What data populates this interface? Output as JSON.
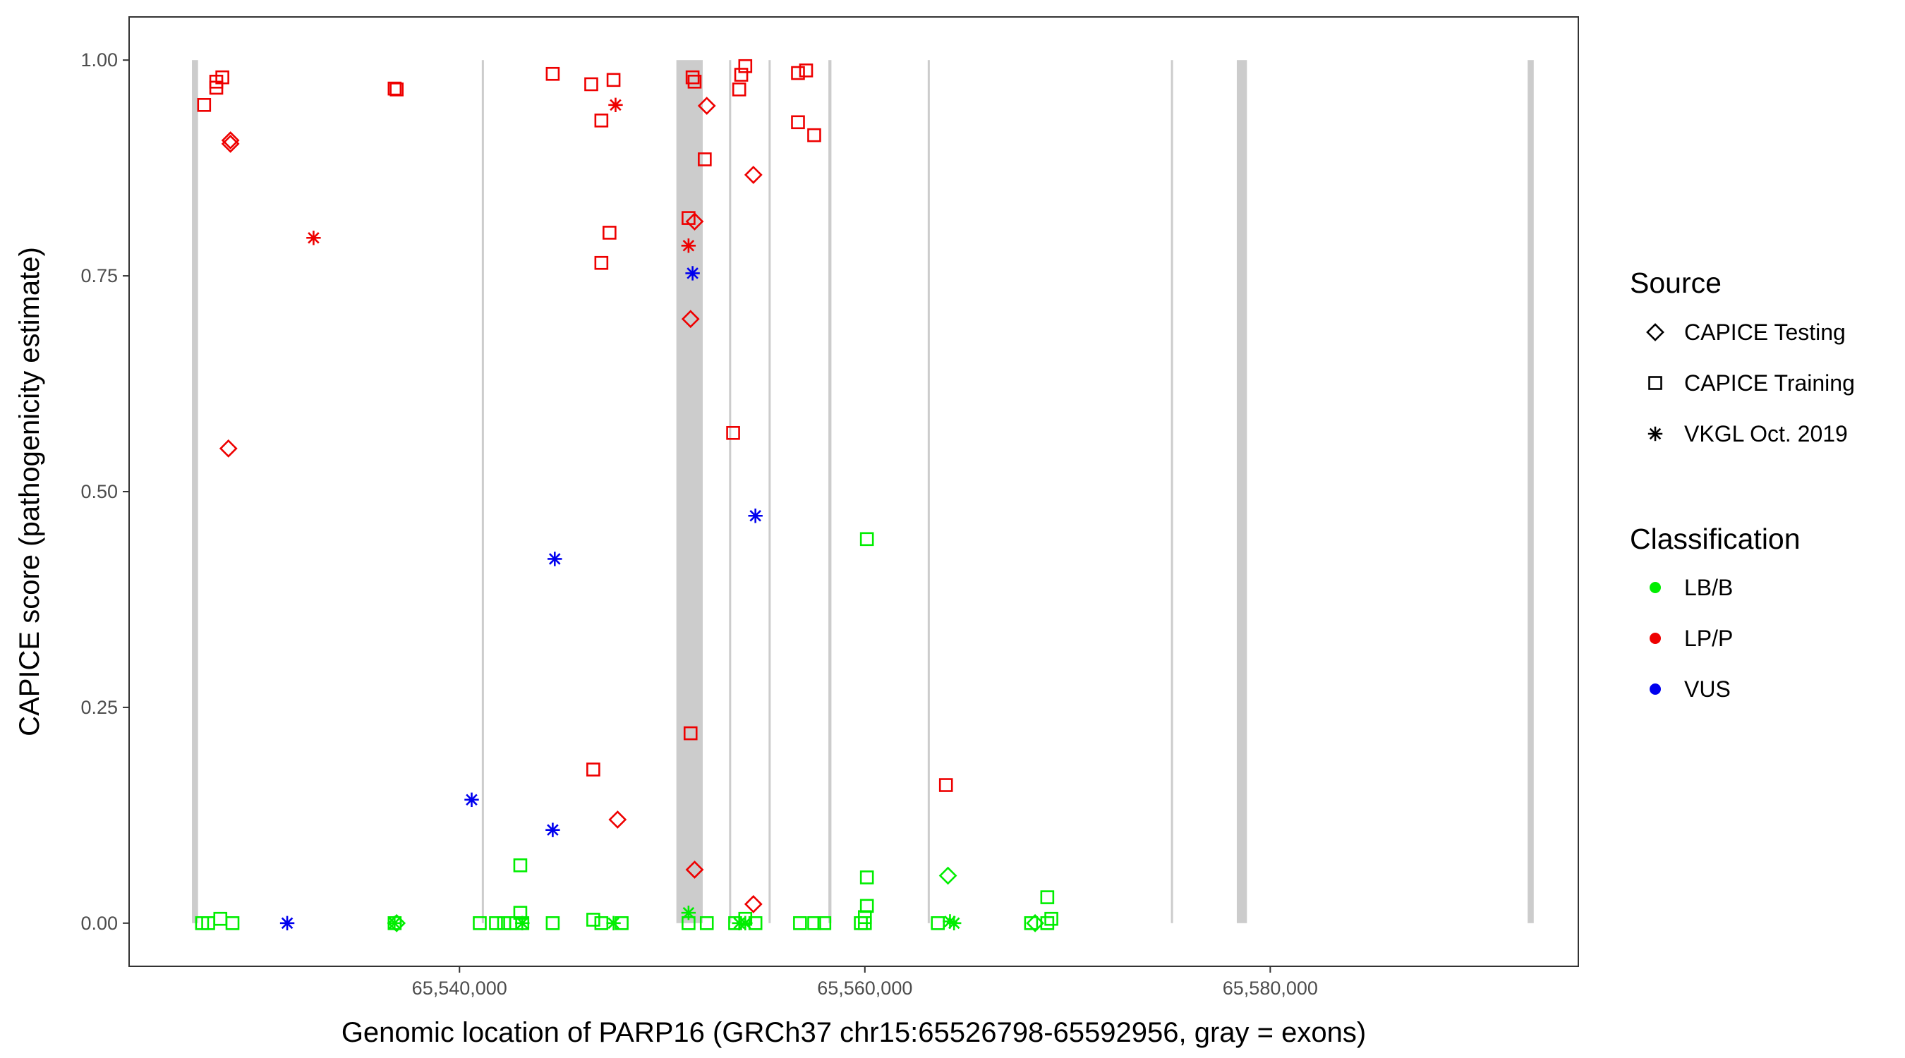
{
  "chart_data": {
    "type": "scatter",
    "xlabel": "Genomic location of PARP16 (GRCh37 chr15:65526798-65592956, gray = exons)",
    "ylabel": "CAPICE score (pathogenicity estimate)",
    "xlim": [
      65523700,
      65595200
    ],
    "ylim": [
      -0.05,
      1.05
    ],
    "x_ticks": [
      65540000,
      65560000,
      65580000
    ],
    "x_tick_labels": [
      "65,540,000",
      "65,560,000",
      "65,580,000"
    ],
    "y_ticks": [
      0,
      0.25,
      0.5,
      0.75,
      1
    ],
    "y_tick_labels": [
      "0.00",
      "0.25",
      "0.50",
      "0.75",
      "1.00"
    ],
    "grid": false,
    "exon_color": "#cccccc",
    "exons": [
      [
        65526800,
        65527100
      ],
      [
        65541100,
        65541150
      ],
      [
        65550700,
        65552000
      ],
      [
        65553300,
        65553380
      ],
      [
        65555250,
        65555320
      ],
      [
        65558200,
        65558350
      ],
      [
        65563100,
        65563180
      ],
      [
        65575100,
        65575170
      ],
      [
        65578350,
        65578850
      ],
      [
        65592700,
        65593000
      ]
    ],
    "legend": {
      "placement": "right",
      "source_title": "Source",
      "source_entries": [
        {
          "label": "CAPICE Testing",
          "shape": "diamond"
        },
        {
          "label": "CAPICE Training",
          "shape": "square"
        },
        {
          "label": "VKGL Oct. 2019",
          "shape": "asterisk"
        }
      ],
      "class_title": "Classification",
      "class_entries": [
        {
          "label": "LB/B",
          "color": "#00ee00"
        },
        {
          "label": "LP/P",
          "color": "#ee0000"
        },
        {
          "label": "VUS",
          "color": "#0000ee"
        }
      ]
    },
    "series": [
      {
        "name": "CAPICE Training · LP/P",
        "shape": "square",
        "color": "#ee0000",
        "points": [
          [
            65527400,
            0.948
          ],
          [
            65528000,
            0.968
          ],
          [
            65528000,
            0.975
          ],
          [
            65528300,
            0.98
          ],
          [
            65536800,
            0.967
          ],
          [
            65536900,
            0.966
          ],
          [
            65544600,
            0.984
          ],
          [
            65546500,
            0.972
          ],
          [
            65547000,
            0.93
          ],
          [
            65547600,
            0.977
          ],
          [
            65547400,
            0.8
          ],
          [
            65547000,
            0.765
          ],
          [
            65546600,
            0.178
          ],
          [
            65551500,
            0.98
          ],
          [
            65551600,
            0.975
          ],
          [
            65551300,
            0.817
          ],
          [
            65551400,
            0.22
          ],
          [
            65552100,
            0.885
          ],
          [
            65553800,
            0.966
          ],
          [
            65553900,
            0.983
          ],
          [
            65554100,
            0.993
          ],
          [
            65553500,
            0.568
          ],
          [
            65556700,
            0.985
          ],
          [
            65557100,
            0.988
          ],
          [
            65556700,
            0.928
          ],
          [
            65557500,
            0.913
          ],
          [
            65564000,
            0.16
          ]
        ]
      },
      {
        "name": "CAPICE Testing · LP/P",
        "shape": "diamond",
        "color": "#ee0000",
        "points": [
          [
            65528700,
            0.907
          ],
          [
            65528700,
            0.903
          ],
          [
            65528600,
            0.55
          ],
          [
            65551600,
            0.813
          ],
          [
            65551400,
            0.7
          ],
          [
            65552200,
            0.947
          ],
          [
            65554500,
            0.867
          ],
          [
            65547800,
            0.12
          ],
          [
            65551600,
            0.062
          ],
          [
            65554500,
            0.022
          ]
        ]
      },
      {
        "name": "VKGL Oct. 2019 · LP/P",
        "shape": "asterisk",
        "color": "#ee0000",
        "points": [
          [
            65532800,
            0.794
          ],
          [
            65547700,
            0.948
          ],
          [
            65551300,
            0.785
          ]
        ]
      },
      {
        "name": "VKGL Oct. 2019 · VUS",
        "shape": "asterisk",
        "color": "#0000ee",
        "points": [
          [
            65531500,
            0.0
          ],
          [
            65540600,
            0.143
          ],
          [
            65544700,
            0.422
          ],
          [
            65544600,
            0.108
          ],
          [
            65551500,
            0.753
          ],
          [
            65554600,
            0.472
          ]
        ]
      },
      {
        "name": "CAPICE Training · LB/B",
        "shape": "square",
        "color": "#00ee00",
        "points": [
          [
            65527300,
            0.0
          ],
          [
            65527600,
            0.0
          ],
          [
            65528200,
            0.005
          ],
          [
            65528800,
            0.0
          ],
          [
            65536800,
            0.0
          ],
          [
            65541000,
            0.0
          ],
          [
            65541800,
            0.0
          ],
          [
            65542200,
            0.0
          ],
          [
            65542500,
            0.0
          ],
          [
            65542800,
            0.0
          ],
          [
            65543100,
            0.0
          ],
          [
            65543000,
            0.012
          ],
          [
            65543000,
            0.067
          ],
          [
            65544600,
            0.0
          ],
          [
            65546600,
            0.004
          ],
          [
            65547000,
            0.0
          ],
          [
            65548000,
            0.0
          ],
          [
            65551300,
            0.0
          ],
          [
            65552200,
            0.0
          ],
          [
            65553600,
            0.0
          ],
          [
            65554100,
            0.005
          ],
          [
            65554600,
            0.0
          ],
          [
            65556800,
            0.0
          ],
          [
            65557500,
            0.0
          ],
          [
            65558000,
            0.0
          ],
          [
            65559800,
            0.0
          ],
          [
            65560000,
            0.0
          ],
          [
            65560000,
            0.007
          ],
          [
            65560100,
            0.02
          ],
          [
            65560100,
            0.053
          ],
          [
            65560100,
            0.445
          ],
          [
            65563600,
            0.0
          ],
          [
            65568200,
            0.0
          ],
          [
            65569000,
            0.0
          ],
          [
            65569200,
            0.005
          ],
          [
            65569000,
            0.03
          ]
        ]
      },
      {
        "name": "CAPICE Testing · LB/B",
        "shape": "diamond",
        "color": "#00ee00",
        "points": [
          [
            65536900,
            0.0
          ],
          [
            65564100,
            0.055
          ],
          [
            65568400,
            0.0
          ]
        ]
      },
      {
        "name": "VKGL Oct. 2019 · LB/B",
        "shape": "asterisk",
        "color": "#00ee00",
        "points": [
          [
            65536800,
            0.0
          ],
          [
            65543100,
            0.0
          ],
          [
            65547600,
            0.0
          ],
          [
            65551300,
            0.012
          ],
          [
            65553800,
            0.0
          ],
          [
            65554100,
            0.0
          ],
          [
            65564400,
            0.0
          ],
          [
            65564200,
            0.002
          ]
        ]
      }
    ]
  }
}
